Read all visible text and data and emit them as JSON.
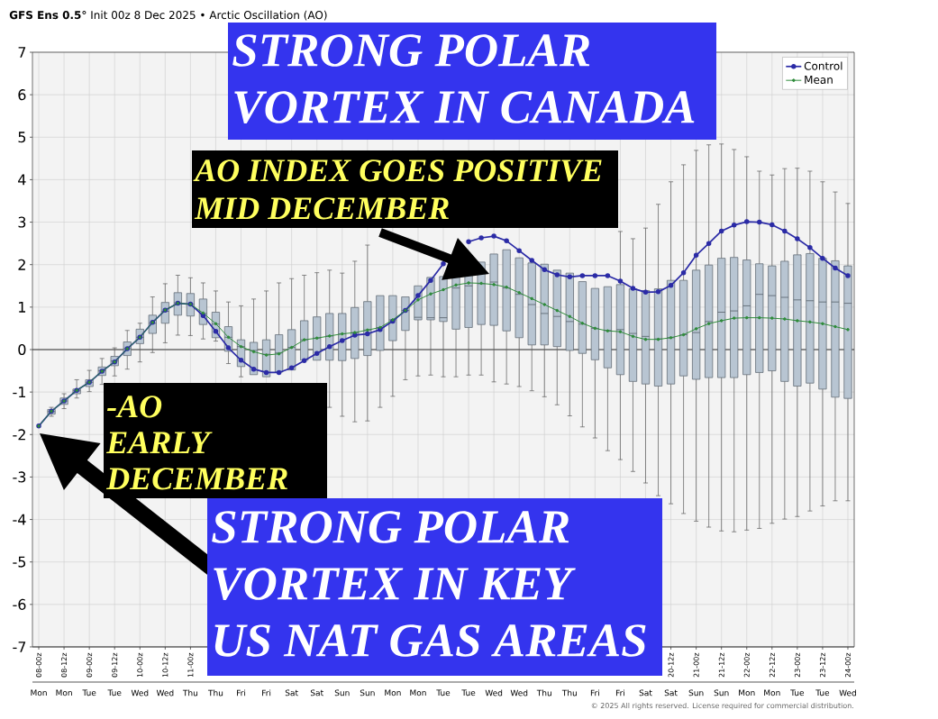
{
  "chart_data": {
    "type": "line",
    "title": "**GFS Ens 0.5°** Init 00z 8 Dec 2025 • Arctic Oscillation (AO)",
    "annotations": [
      "STRONG POLAR VORTEX IN CANADA",
      "AO INDEX GOES POSITIVE MID DECEMBER",
      "-AO EARLY DECEMBER",
      "STRONG POLAR VORTEX IN KEY US NAT GAS AREAS",
      "© 2025 All rights reserved. License required for commercial distribution."
    ],
    "categories": [
      "Mon",
      null,
      "Mon",
      null,
      "Tue",
      null,
      "Tue",
      null,
      "Wed",
      null,
      "Wed",
      null,
      "Thu",
      null,
      "Thu",
      null,
      "Fri",
      null,
      "Fri",
      null,
      "Sat",
      null,
      "Sat",
      null,
      "Sun",
      null,
      "Sun",
      null,
      "Mon",
      null,
      "Mon",
      null,
      "Tue",
      null,
      "Tue",
      null,
      "Wed",
      null,
      "Wed",
      null,
      "Thu",
      null,
      "Thu",
      null,
      "Fri",
      null,
      "Fri",
      null,
      "Sat",
      null,
      "Sat",
      null,
      "Sun",
      null,
      "Sun",
      null,
      "Mon",
      null,
      "Mon",
      null,
      "Tue",
      null,
      "Tue",
      null,
      "Wed"
    ],
    "x2lim": [
      "2025-12-07T21:00",
      "2025-12-24T03:00"
    ],
    "x2ticks": [
      {
        "value": "2025-12-08T00:00",
        "label": "08-00z"
      },
      {
        "value": "2025-12-08T12:00",
        "label": "08-12z"
      },
      {
        "value": "2025-12-09T00:00",
        "label": "09-00z"
      },
      {
        "value": "2025-12-09T12:00",
        "label": "09-12z"
      },
      {
        "value": "2025-12-10T00:00",
        "label": "10-00z"
      },
      {
        "value": "2025-12-10T12:00",
        "label": "10-12z"
      },
      {
        "value": "2025-12-11T00:00",
        "label": "11-00z"
      },
      {
        "value": "2025-12-11T12:00",
        "label": null
      },
      {
        "value": "2025-12-12T00:00",
        "label": null
      },
      {
        "value": "2025-12-12T12:00",
        "label": null
      },
      {
        "value": "2025-12-13T00:00",
        "label": null
      },
      {
        "value": "2025-12-13T12:00",
        "label": null
      },
      {
        "value": "2025-12-14T00:00",
        "label": null
      },
      {
        "value": "2025-12-14T12:00",
        "label": null
      },
      {
        "value": "2025-12-15T00:00",
        "label": null
      },
      {
        "value": "2025-12-15T12:00",
        "label": null
      },
      {
        "value": "2025-12-16T00:00",
        "label": null
      },
      {
        "value": "2025-12-16T12:00",
        "label": null
      },
      {
        "value": "2025-12-17T00:00",
        "label": null
      },
      {
        "value": "2025-12-17T12:00",
        "label": null
      },
      {
        "value": "2025-12-18T00:00",
        "label": null
      },
      {
        "value": "2025-12-18T12:00",
        "label": null
      },
      {
        "value": "2025-12-19T00:00",
        "label": null
      },
      {
        "value": "2025-12-19T12:00",
        "label": null
      },
      {
        "value": "2025-12-20T00:00",
        "label": null
      },
      {
        "value": "2025-12-20T12:00",
        "label": "20-12z"
      },
      {
        "value": "2025-12-21T00:00",
        "label": "21-00z"
      },
      {
        "value": "2025-12-21T12:00",
        "label": "21-12z"
      },
      {
        "value": "2025-12-22T00:00",
        "label": "22-00z"
      },
      {
        "value": "2025-12-22T12:00",
        "label": "22-12z"
      },
      {
        "value": "2025-12-23T00:00",
        "label": "23-00z"
      },
      {
        "value": "2025-12-23T12:00",
        "label": "23-12z"
      },
      {
        "value": "2025-12-24T00:00",
        "label": "24-00z"
      }
    ],
    "ylim": [
      -7,
      7
    ],
    "yticks": [
      -7,
      -6,
      -5,
      -4,
      -3,
      -2,
      -1,
      0,
      1,
      2,
      3,
      4,
      5,
      6,
      7
    ],
    "grid": true,
    "legend": "top right",
    "marker": "circle",
    "line_style": "solid",
    "ref_lines": [
      {
        "axis": "y",
        "value": 0,
        "color": "#333333"
      }
    ],
    "series": [
      {
        "type": "box",
        "color": "#b8c5d2",
        "boxes": [
          null,
          {
            "low": -1.57,
            "q1": -1.52,
            "median": -1.46,
            "q3": -1.41,
            "high": -1.36
          },
          {
            "low": -1.39,
            "q1": -1.29,
            "median": -1.21,
            "q3": -1.14,
            "high": -1.04
          },
          {
            "low": -1.14,
            "q1": -1.04,
            "median": -0.97,
            "q3": -0.93,
            "high": -0.71
          },
          {
            "low": -0.99,
            "q1": -0.87,
            "median": -0.77,
            "q3": -0.71,
            "high": -0.49
          },
          {
            "low": -0.82,
            "q1": -0.61,
            "median": -0.5,
            "q3": -0.41,
            "high": -0.21
          },
          {
            "low": -0.62,
            "q1": -0.38,
            "median": -0.27,
            "q3": -0.16,
            "high": 0.04
          },
          {
            "low": -0.46,
            "q1": -0.14,
            "median": 0.02,
            "q3": 0.18,
            "high": 0.45
          },
          {
            "low": -0.29,
            "q1": 0.14,
            "median": 0.29,
            "q3": 0.48,
            "high": 0.62
          },
          {
            "low": -0.07,
            "q1": 0.38,
            "median": 0.62,
            "q3": 0.81,
            "high": 1.24
          },
          {
            "low": 0.16,
            "q1": 0.62,
            "median": 0.9,
            "q3": 1.11,
            "high": 1.55
          },
          {
            "low": 0.34,
            "q1": 0.81,
            "median": 1.1,
            "q3": 1.34,
            "high": 1.75
          },
          {
            "low": 0.33,
            "q1": 0.79,
            "median": 1.07,
            "q3": 1.32,
            "high": 1.69
          },
          {
            "low": 0.25,
            "q1": 0.59,
            "median": 0.85,
            "q3": 1.19,
            "high": 1.57
          },
          {
            "low": 0.2,
            "q1": 0.28,
            "median": 0.6,
            "q3": 0.88,
            "high": 1.38
          },
          {
            "low": -0.33,
            "q1": -0.04,
            "median": 0.29,
            "q3": 0.54,
            "high": 1.12
          },
          {
            "low": -0.64,
            "q1": -0.4,
            "median": 0.07,
            "q3": 0.23,
            "high": 1.03
          },
          {
            "low": null,
            "q1": -0.59,
            "median": -0.02,
            "q3": 0.17,
            "high": 1.19
          },
          {
            "low": null,
            "q1": -0.64,
            "median": -0.11,
            "q3": 0.23,
            "high": 1.38
          },
          {
            "low": null,
            "q1": -0.53,
            "median": -0.08,
            "q3": 0.35,
            "high": 1.57
          },
          {
            "low": null,
            "q1": -0.48,
            "median": 0.05,
            "q3": 0.47,
            "high": 1.67
          },
          {
            "low": null,
            "q1": -0.25,
            "median": 0.23,
            "q3": 0.68,
            "high": 1.75
          },
          {
            "low": null,
            "q1": -0.25,
            "median": 0.27,
            "q3": 0.77,
            "high": 1.81
          },
          {
            "low": -1.36,
            "q1": -0.25,
            "median": 0.32,
            "q3": 0.85,
            "high": 1.87
          },
          {
            "low": -1.57,
            "q1": -0.26,
            "median": 0.37,
            "q3": 0.85,
            "high": 1.8
          },
          {
            "low": -1.7,
            "q1": -0.21,
            "median": 0.4,
            "q3": 0.99,
            "high": 2.08
          },
          {
            "low": -1.68,
            "q1": -0.14,
            "median": 0.46,
            "q3": 1.13,
            "high": 2.46
          },
          {
            "low": -1.36,
            "q1": -0.02,
            "median": 0.52,
            "q3": 1.27,
            "high": null
          },
          {
            "low": -1.1,
            "q1": 0.21,
            "median": 0.7,
            "q3": 1.27,
            "high": null
          },
          {
            "low": -0.71,
            "q1": 0.45,
            "median": 0.92,
            "q3": 1.24,
            "high": null
          },
          {
            "low": -0.62,
            "q1": 0.7,
            "median": 0.76,
            "q3": 1.5,
            "high": null
          },
          {
            "low": -0.6,
            "q1": 0.7,
            "median": 0.75,
            "q3": 1.7,
            "high": null
          },
          {
            "low": -0.64,
            "q1": 0.66,
            "median": 0.75,
            "q3": 1.72,
            "high": null
          },
          {
            "low": -0.64,
            "q1": 0.48,
            "median": 1.45,
            "q3": 1.74,
            "high": null
          },
          {
            "low": -0.6,
            "q1": 0.52,
            "median": 1.5,
            "q3": 1.86,
            "high": null
          },
          {
            "low": -0.6,
            "q1": 0.59,
            "median": 1.55,
            "q3": 2.06,
            "high": null
          },
          {
            "low": -0.76,
            "q1": 0.57,
            "median": 1.59,
            "q3": 2.25,
            "high": null
          },
          {
            "low": -0.81,
            "q1": 0.44,
            "median": 1.45,
            "q3": 2.35,
            "high": null
          },
          {
            "low": -0.87,
            "q1": 0.28,
            "median": 1.3,
            "q3": 2.16,
            "high": null
          },
          {
            "low": -0.97,
            "q1": 0.11,
            "median": 1.06,
            "q3": 2.04,
            "high": null
          },
          {
            "low": -1.11,
            "q1": 0.11,
            "median": 0.85,
            "q3": 2.01,
            "high": null
          },
          {
            "low": -1.3,
            "q1": 0.07,
            "median": 0.78,
            "q3": 1.87,
            "high": null
          },
          {
            "low": -1.56,
            "q1": -0.02,
            "median": 0.66,
            "q3": 1.8,
            "high": null
          },
          {
            "low": -1.82,
            "q1": -0.09,
            "median": 0.6,
            "q3": 1.6,
            "high": null
          },
          {
            "low": -2.08,
            "q1": -0.24,
            "median": 0.5,
            "q3": 1.44,
            "high": null
          },
          {
            "low": -2.38,
            "q1": -0.43,
            "median": 0.45,
            "q3": 1.48,
            "high": null
          },
          {
            "low": -2.59,
            "q1": -0.59,
            "median": 0.47,
            "q3": 1.53,
            "high": 2.78
          },
          {
            "low": -2.87,
            "q1": -0.75,
            "median": 0.38,
            "q3": 1.43,
            "high": 2.61
          },
          {
            "low": -3.14,
            "q1": -0.81,
            "median": 0.31,
            "q3": 1.39,
            "high": 2.86
          },
          {
            "low": -3.44,
            "q1": -0.86,
            "median": 0.25,
            "q3": 1.43,
            "high": 3.42
          },
          {
            "low": -3.63,
            "q1": -0.81,
            "median": 0.28,
            "q3": 1.63,
            "high": 3.95
          },
          {
            "low": -3.86,
            "q1": -0.62,
            "median": 0.35,
            "q3": 1.63,
            "high": 4.35
          },
          {
            "low": -4.04,
            "q1": -0.7,
            "median": 0.4,
            "q3": 1.87,
            "high": 4.69
          },
          {
            "low": -4.18,
            "q1": -0.66,
            "median": 0.66,
            "q3": 1.99,
            "high": 4.82
          },
          {
            "low": -4.27,
            "q1": -0.66,
            "median": 0.88,
            "q3": 2.15,
            "high": 4.84
          },
          {
            "low": -4.29,
            "q1": -0.66,
            "median": 0.91,
            "q3": 2.17,
            "high": 4.71
          },
          {
            "low": -4.25,
            "q1": -0.59,
            "median": 1.03,
            "q3": 2.11,
            "high": 4.54
          },
          {
            "low": -4.21,
            "q1": -0.54,
            "median": 1.3,
            "q3": 2.02,
            "high": 4.2
          },
          {
            "low": -4.09,
            "q1": -0.5,
            "median": 1.27,
            "q3": 1.97,
            "high": 4.11
          },
          {
            "low": -3.99,
            "q1": -0.75,
            "median": 1.23,
            "q3": 2.08,
            "high": 4.26
          },
          {
            "low": -3.93,
            "q1": -0.86,
            "median": 1.17,
            "q3": 2.23,
            "high": 4.27
          },
          {
            "low": -3.8,
            "q1": -0.79,
            "median": 1.15,
            "q3": 2.26,
            "high": 4.2
          },
          {
            "low": -3.68,
            "q1": -0.93,
            "median": 1.12,
            "q3": 2.15,
            "high": 3.95
          },
          {
            "low": -3.56,
            "q1": -1.12,
            "median": 1.12,
            "q3": 2.09,
            "high": 3.71
          },
          {
            "low": -3.56,
            "q1": -1.15,
            "median": 1.09,
            "q3": 1.97,
            "high": 3.44
          }
        ]
      },
      {
        "name": "Control",
        "color": "#2b2ba6",
        "values": [
          -1.8,
          -1.45,
          -1.21,
          -0.96,
          -0.77,
          -0.51,
          -0.29,
          0.02,
          0.29,
          0.64,
          0.93,
          1.09,
          1.07,
          0.8,
          0.43,
          0.04,
          -0.25,
          -0.46,
          -0.54,
          -0.54,
          -0.43,
          -0.26,
          -0.09,
          0.07,
          0.21,
          0.34,
          0.37,
          0.47,
          0.67,
          0.92,
          1.27,
          1.63,
          2.02,
          null,
          2.54,
          2.63,
          2.67,
          2.56,
          2.33,
          2.1,
          1.88,
          1.76,
          1.71,
          1.74,
          1.74,
          1.74,
          1.61,
          1.44,
          1.35,
          1.36,
          1.51,
          1.81,
          2.22,
          2.5,
          2.79,
          2.93,
          3.01,
          3.0,
          2.94,
          2.79,
          2.61,
          2.4,
          2.15,
          1.92,
          1.74
        ]
      },
      {
        "name": "Mean",
        "color": "#2e8b3a",
        "values": [
          -1.8,
          -1.45,
          -1.21,
          -0.96,
          -0.77,
          -0.51,
          -0.29,
          0.02,
          0.29,
          0.64,
          0.93,
          1.09,
          1.07,
          0.86,
          0.61,
          0.29,
          0.07,
          -0.05,
          -0.13,
          -0.1,
          0.05,
          0.23,
          0.27,
          0.32,
          0.37,
          0.4,
          0.46,
          0.52,
          0.7,
          0.92,
          1.17,
          1.31,
          1.41,
          1.52,
          1.57,
          1.56,
          1.53,
          1.47,
          1.34,
          1.2,
          1.06,
          0.92,
          0.78,
          0.62,
          0.5,
          0.44,
          0.42,
          0.31,
          0.24,
          0.24,
          0.28,
          0.35,
          0.49,
          0.61,
          0.68,
          0.74,
          0.75,
          0.75,
          0.74,
          0.72,
          0.68,
          0.65,
          0.61,
          0.54,
          0.47
        ]
      }
    ]
  }
}
